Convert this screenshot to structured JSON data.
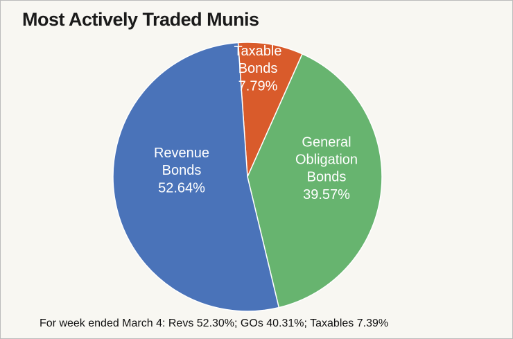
{
  "chart_data": {
    "type": "pie",
    "title": "Most Actively Traded Munis",
    "categories": [
      "Taxable Bonds",
      "General Obligation Bonds",
      "Revenue Bonds"
    ],
    "values": [
      7.79,
      39.57,
      52.64
    ],
    "value_labels": [
      "7.79%",
      "39.57%",
      "52.64%"
    ],
    "colors": [
      "#d95b2b",
      "#67b46f",
      "#4a73b9"
    ],
    "note": "For week ended March 4: Revs 52.30%; GOs 40.31%; Taxables 7.39%"
  }
}
